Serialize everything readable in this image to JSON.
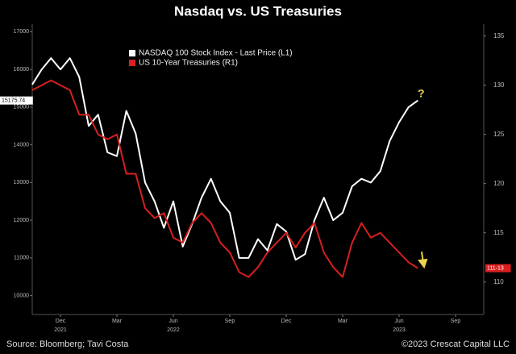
{
  "chart_data": {
    "type": "line",
    "title": "Nasdaq vs. US Treasuries",
    "source": "Source: Bloomberg; Tavi Costa",
    "copyright": "©2023 Crescat Capital LLC",
    "annotation": "?",
    "categories": [
      null,
      null,
      null,
      "Dec",
      null,
      null,
      null,
      null,
      null,
      "Mar",
      null,
      null,
      null,
      null,
      null,
      "Jun",
      null,
      null,
      null,
      null,
      null,
      "Sep",
      null,
      null,
      null,
      null,
      null,
      "Dec",
      null,
      null,
      null,
      null,
      null,
      "Mar",
      null,
      null,
      null,
      null,
      null,
      "Jun",
      null,
      null,
      null,
      null,
      null,
      "Sep",
      null,
      null,
      null
    ],
    "years": [
      null,
      null,
      null,
      "2021",
      null,
      null,
      null,
      null,
      null,
      null,
      null,
      null,
      null,
      null,
      null,
      "2022",
      null,
      null,
      null,
      null,
      null,
      null,
      null,
      null,
      null,
      null,
      null,
      null,
      null,
      null,
      null,
      null,
      null,
      null,
      null,
      null,
      null,
      null,
      null,
      "2023",
      null,
      null,
      null,
      null,
      null,
      null,
      null,
      null,
      null
    ],
    "ylim": [
      9500,
      17200
    ],
    "yticks": [
      10000,
      11000,
      12000,
      13000,
      14000,
      15000,
      16000,
      17000
    ],
    "y2lim": [
      106.7,
      136.2
    ],
    "y2ticks": [
      110,
      115,
      120,
      125,
      130,
      135
    ],
    "series": [
      {
        "name": "NASDAQ 100 Stock Index - Last Price (L1)",
        "color": "#ffffff",
        "values": [
          15600,
          16000,
          16300,
          16000,
          16300,
          15800,
          14500,
          14800,
          13800,
          13700,
          14900,
          14300,
          13000,
          12500,
          11800,
          12500,
          11300,
          11900,
          12600,
          13100,
          12500,
          12200,
          11000,
          11000,
          11500,
          11200,
          11900,
          11700,
          10950,
          11100,
          12000,
          12600,
          12000,
          12200,
          12900,
          13100,
          13000,
          13300,
          14100,
          14600,
          15000,
          15175.74,
          null,
          null,
          null,
          null,
          null,
          null,
          null
        ],
        "value_labels": [
          null,
          null,
          null,
          null,
          null,
          null,
          null,
          null,
          null,
          null,
          null,
          null,
          null,
          null,
          null,
          null,
          null,
          null,
          null,
          null,
          null,
          null,
          null,
          null,
          null,
          null,
          null,
          null,
          null,
          null,
          null,
          null,
          null,
          null,
          null,
          null,
          null,
          null,
          null,
          null,
          null,
          "15175.74",
          null,
          null,
          null,
          null,
          null,
          null,
          null
        ]
      },
      {
        "name": "US 10-Year Treasuries (R1)",
        "color": "#d91f1f",
        "axis": "y2",
        "values": [
          129.5,
          130,
          130.5,
          130,
          129.5,
          127,
          127,
          125,
          124.5,
          125,
          121,
          121,
          117.5,
          116.5,
          117,
          114.5,
          114,
          116,
          117,
          116,
          114,
          113,
          111,
          110.5,
          111.5,
          113,
          114,
          115,
          113.5,
          115,
          116,
          113,
          111.5,
          110.5,
          114,
          116,
          114.5,
          115,
          114,
          113,
          112,
          111.40625,
          null,
          null,
          null,
          null,
          null,
          null,
          null
        ],
        "value_labels": [
          null,
          null,
          null,
          null,
          null,
          null,
          null,
          null,
          null,
          null,
          null,
          null,
          null,
          null,
          null,
          null,
          null,
          null,
          null,
          null,
          null,
          null,
          null,
          null,
          null,
          null,
          null,
          null,
          null,
          null,
          null,
          null,
          null,
          null,
          null,
          null,
          null,
          null,
          null,
          null,
          null,
          "111-13",
          null,
          null,
          null,
          null,
          null,
          null,
          null
        ]
      }
    ]
  }
}
